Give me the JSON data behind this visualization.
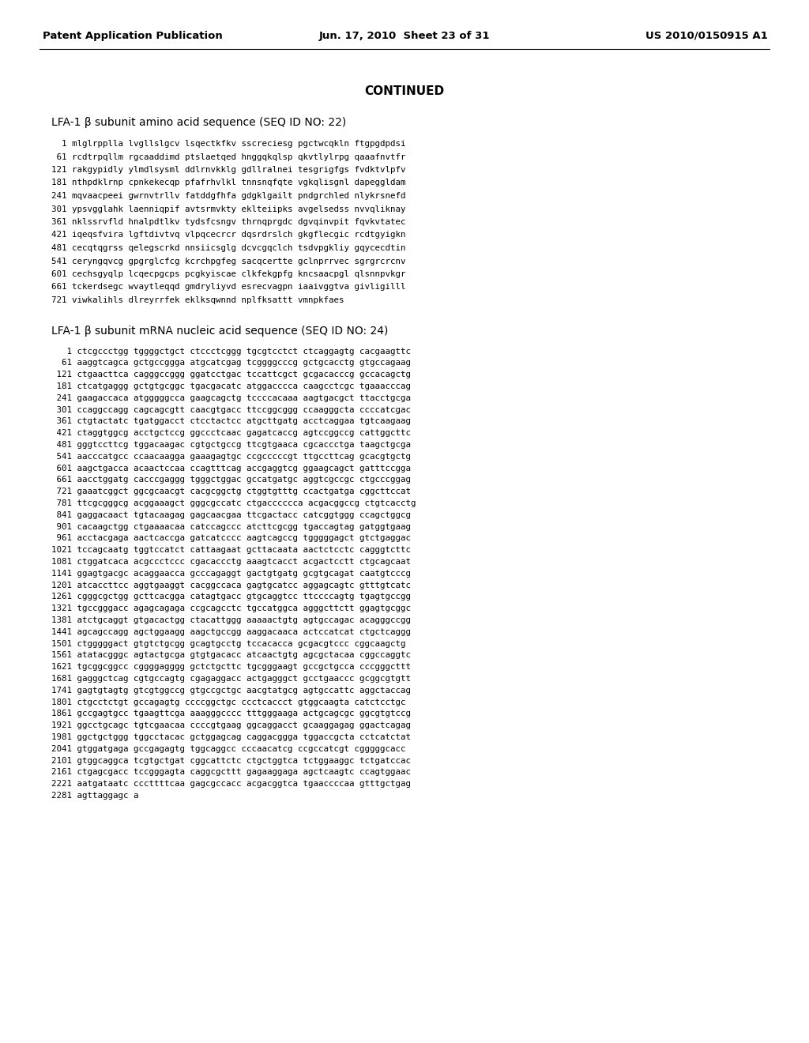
{
  "header_left": "Patent Application Publication",
  "header_mid": "Jun. 17, 2010  Sheet 23 of 31",
  "header_right": "US 2010/0150915 A1",
  "continued_title": "CONTINUED",
  "section1_title": "LFA-1 β subunit amino acid sequence (SEQ ID NO: 22)",
  "section1_lines": [
    "  1 mlglrpplla lvgllslgcv lsqectkfkv sscreciesg pgctwcqkln ftgpgdpdsi",
    " 61 rcdtrpqllm rgcaaddimd ptslaetqed hnggqkqlsp qkvtlylrpg qaaafnvtfr",
    "121 rakgypidly ylmdlsysml ddlrnvkklg gdllralnei tesgrigfgs fvdktvlpfv",
    "181 nthpdklrnp cpnkekecqp pfafrhvlkl tnnsnqfqte vgkqlisgnl dapeggldam",
    "241 mqvaacpeei gwrnvtrllv fatddgfhfa gdgklgailt pndgrchled nlykrsnefd",
    "301 ypsvgglahk laenniqpif avtsrmvkty eklteiipks avgelsedss nvvqliknay",
    "361 nklssrvfld hnalpdtlkv tydsfcsngv thrnqprgdc dgvqinvpit fqvkvtatec",
    "421 iqeqsfvira lgftdivtvq vlpqcecrcr dqsrdrslch gkgflecgic rcdtgyigkn",
    "481 cecqtqgrss qelegscrkd nnsiicsglg dcvcgqclch tsdvpgkliy gqycecdtin",
    "541 ceryngqvcg gpgrglcfcg kcrchpgfeg sacqcertte gclnprrvec sgrgrcrcnv",
    "601 cechsgyqlp lcqecpgcps pcgkyiscae clkfekgpfg kncsaacpgl qlsnnpvkgr",
    "661 tckerdsegc wvaytleqqd gmdryliyvd esrecvagpn iaaivggtva givligilll",
    "721 viwkalihls dlreyrrfek eklksqwnnd nplfksattt vmnpkfaes"
  ],
  "section2_title": "LFA-1 β subunit mRNA nucleic acid sequence (SEQ ID NO: 24)",
  "section2_lines": [
    "   1 ctcgccctgg tggggctgct ctccctcggg tgcgtcctct ctcaggagtg cacgaagttc",
    "  61 aaggtcagca gctgccggga atgcatcgag tcggggcccg gctgcacctg gtgccagaag",
    " 121 ctgaacttca cagggccggg ggatcctgac tccattcgct gcgacacccg gccacagctg",
    " 181 ctcatgaggg gctgtgcggc tgacgacatc atggacccca caagcctcgc tgaaacccag",
    " 241 gaagaccaca atgggggcca gaagcagctg tccccacaaa aagtgacgct ttacctgcga",
    " 301 ccaggccagg cagcagcgtt caacgtgacc ttccggcggg ccaagggcta ccccatcgac",
    " 361 ctgtactatc tgatggacct ctcctactcc atgcttgatg acctcaggaa tgtcaagaag",
    " 421 ctaggtggcg acctgctccg ggccctcaac gagatcaccg agtccggccg cattggcttc",
    " 481 gggtccttcg tggacaagac cgtgctgccg ttcgtgaaca cgcaccctga taagctgcga",
    " 541 aacccatgcc ccaacaagga gaaagagtgc ccgcccccgt ttgccttcag gcacgtgctg",
    " 601 aagctgacca acaactccaa ccagtttcag accgaggtcg ggaagcagct gatttccgga",
    " 661 aacctggatg cacccgaggg tgggctggac gccatgatgc aggtcgccgc ctgcccggag",
    " 721 gaaatcggct ggcgcaacgt cacgcggctg ctggtgtttg ccactgatga cggcttccat",
    " 781 ttcgcgggcg acggaaagct gggcgccatc ctgacccccca acgacggccg ctgtcacctg",
    " 841 gaggacaact tgtacaagag gagcaacgaa ttcgactacc catcggtggg ccagctggcg",
    " 901 cacaagctgg ctgaaaacaa catccagccc atcttcgcgg tgaccagtag gatggtgaag",
    " 961 acctacgaga aactcaccga gatcatcccc aagtcagccg tgggggagct gtctgaggac",
    "1021 tccagcaatg tggtccatct cattaagaat gcttacaata aactctcctc cagggtcttc",
    "1081 ctggatcaca acgccctccc cgacaccctg aaagtcacct acgactcctt ctgcagcaat",
    "1141 ggagtgacgc acaggaacca gcccagaggt gactgtgatg gcgtgcagat caatgtcccg",
    "1201 atcaccttcc aggtgaaggt cacggccaca gagtgcatcc aggagcagtc gtttgtcatc",
    "1261 cgggcgctgg gcttcacgga catagtgacc gtgcaggtcc ttccccagtg tgagtgccgg",
    "1321 tgccgggacc agagcagaga ccgcagcctc tgccatggca agggcttctt ggagtgcggc",
    "1381 atctgcaggt gtgacactgg ctacattggg aaaaactgtg agtgccagac acagggccgg",
    "1441 agcagccagg agctggaagg aagctgccgg aaggacaaca actccatcat ctgctcaggg",
    "1501 ctgggggact gtgtctgcgg gcagtgcctg tccacacca gcgacgtccc cggcaagctg",
    "1561 atatacgggc agtactgcga gtgtgacacc atcaactgtg agcgctacaa cggccaggtc",
    "1621 tgcggcggcc cggggagggg gctctgcttc tgcgggaagt gccgctgcca cccgggcttt",
    "1681 gagggctcag cgtgccagtg cgagaggacc actgagggct gcctgaaccc gcggcgtgtt",
    "1741 gagtgtagtg gtcgtggccg gtgccgctgc aacgtatgcg agtgccattc aggctaccag",
    "1801 ctgcctctgt gccagagtg ccccggctgc ccctcaccct gtggcaagta catctcctgc",
    "1861 gccgagtgcc tgaagttcga aaagggcccc tttgggaaga actgcagcgc ggcgtgtccg",
    "1921 ggcctgcagc tgtcgaacaa ccccgtgaag ggcaggacct gcaaggagag ggactcagag",
    "1981 ggctgctggg tggcctacac gctggagcag caggacggga tggaccgcta cctcatctat",
    "2041 gtggatgaga gccgagagtg tggcaggcc cccaacatcg ccgccatcgt cgggggcacc",
    "2101 gtggcaggca tcgtgctgat cggcattctc ctgctggtca tctggaaggc tctgatccac",
    "2161 ctgagcgacc tccgggagta caggcgcttt gagaaggaga agctcaagtc ccagtggaac",
    "2221 aatgataatc cccttttcaa gagcgccacc acgacggtca tgaaccccaa gtttgctgag",
    "2281 agttaggagc a"
  ],
  "bg_color": "#ffffff",
  "text_color": "#000000"
}
